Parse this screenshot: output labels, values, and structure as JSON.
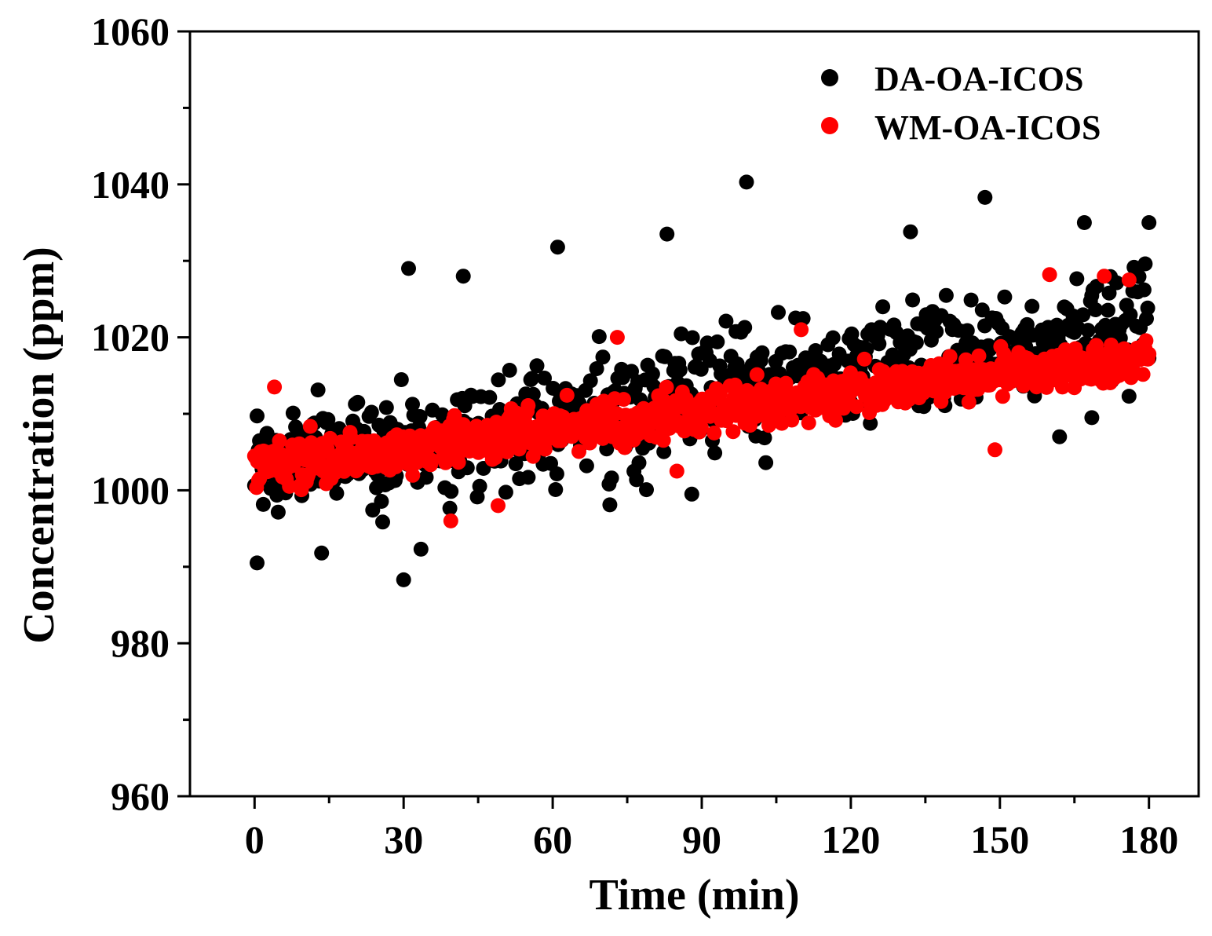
{
  "chart_data": {
    "type": "scatter",
    "title": "",
    "xlabel": "Time (min)",
    "ylabel": "Concentration (ppm)",
    "xlim": [
      -13,
      190
    ],
    "ylim": [
      960,
      1060
    ],
    "xticks": [
      0,
      30,
      60,
      90,
      120,
      150,
      180
    ],
    "xtick_labels": [
      "0",
      "30",
      "60",
      "90",
      "120",
      "150",
      "180"
    ],
    "yticks": [
      960,
      980,
      1000,
      1020,
      1040,
      1060
    ],
    "ytick_labels": [
      "960",
      "980",
      "1000",
      "1020",
      "1040",
      "1060"
    ],
    "grid": false,
    "legend": "top-right",
    "series": [
      {
        "name": "DA-OA-ICOS",
        "color": "#000000",
        "trend": {
          "x_start": 0,
          "x_end": 180,
          "y_start": 1003,
          "y_end": 1022
        },
        "spread": 6.5,
        "n_points": 720,
        "highlights": [
          [
            0.5,
            990.5
          ],
          [
            30,
            988.3
          ],
          [
            13.5,
            991.8
          ],
          [
            33.5,
            992.3
          ],
          [
            31,
            1029
          ],
          [
            42,
            1028
          ],
          [
            99,
            1040.3
          ],
          [
            83,
            1033.5
          ],
          [
            61,
            1031.8
          ],
          [
            132,
            1033.8
          ],
          [
            147,
            1038.3
          ],
          [
            167,
            1035
          ],
          [
            180,
            1035
          ],
          [
            162,
            1007
          ],
          [
            168.5,
            1009.5
          ],
          [
            88,
            999.5
          ],
          [
            71.5,
            998.1
          ]
        ]
      },
      {
        "name": "WM-OA-ICOS",
        "color": "#ff0000",
        "trend": {
          "x_start": 0,
          "x_end": 180,
          "y_start": 1003,
          "y_end": 1017.5
        },
        "spread": 2.6,
        "n_points": 900,
        "highlights": [
          [
            160,
            1028.2
          ],
          [
            171,
            1028
          ],
          [
            176,
            1027.5
          ],
          [
            110,
            1021
          ],
          [
            73,
            1020
          ],
          [
            149,
            1005.3
          ],
          [
            39.5,
            996
          ],
          [
            49,
            998
          ],
          [
            4,
            1013.5
          ],
          [
            85,
            1002.5
          ]
        ]
      }
    ]
  }
}
